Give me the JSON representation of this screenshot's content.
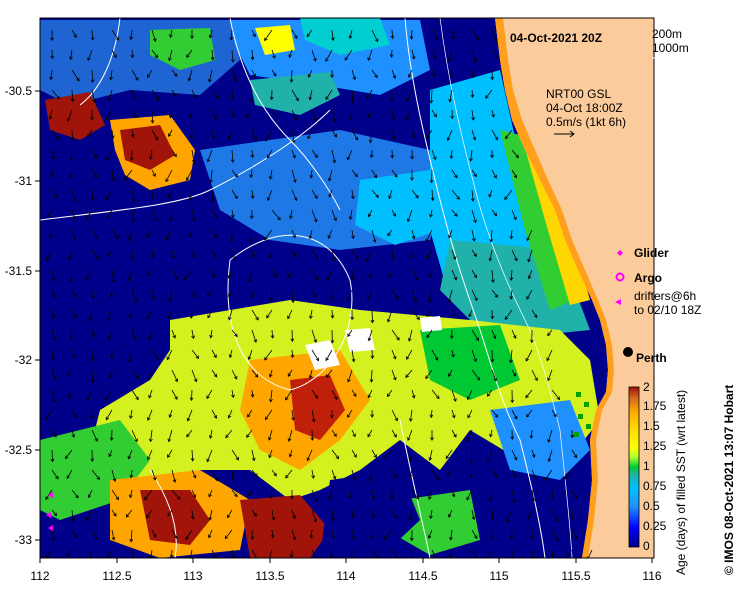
{
  "header": {
    "timestamp": "04-Oct-2021 20Z",
    "depth_labels": [
      "200m",
      "1000m"
    ]
  },
  "current_legend": {
    "lines": [
      "NRT00 GSL",
      "04-Oct 18:00Z",
      "0.5m/s (1kt 6h)"
    ]
  },
  "symbol_legend": {
    "glider": {
      "label": "Glider",
      "color": "#ff00ff",
      "icon": "diamond-icon"
    },
    "argo": {
      "label": "Argo",
      "color": "#ff00ff",
      "icon": "ring-icon"
    },
    "drifters": {
      "lines": [
        "drifters@6h",
        "to 02/10 18Z"
      ],
      "color": "#ff00ff",
      "icon": "triangle-icon"
    }
  },
  "place_label": "Perth",
  "credit": "© IMOS 08-Oct-2021 13:07 Hobart",
  "colorbar": {
    "label": "Age (days) of filled SST (wrt latest)",
    "ticks": [
      "0",
      "0.25",
      "0.5",
      "0.75",
      "1",
      "1.25",
      "1.5",
      "1.75",
      "2"
    ],
    "colors": [
      "#00008b",
      "#0000ff",
      "#1e90ff",
      "#00bfff",
      "#00ced1",
      "#20b2aa",
      "#00c832",
      "#32cd32",
      "#adff2f",
      "#ffff00",
      "#ffd700",
      "#ffa500",
      "#d2691e",
      "#a0140a"
    ]
  },
  "axes": {
    "x_ticks": [
      "112",
      "112.5",
      "113",
      "113.5",
      "114",
      "114.5",
      "115",
      "115.5",
      "116"
    ],
    "y_ticks": [
      "-30.5",
      "-31",
      "-31.5",
      "-32",
      "-32.5",
      "-33"
    ],
    "lon_range": [
      112,
      116
    ],
    "lat_range": [
      -33.1,
      -30.1
    ]
  },
  "colors": {
    "land": "#fccb9b",
    "coast_strip": "#ff9f1c",
    "contour": "#ffffff",
    "frame": "#000000"
  }
}
